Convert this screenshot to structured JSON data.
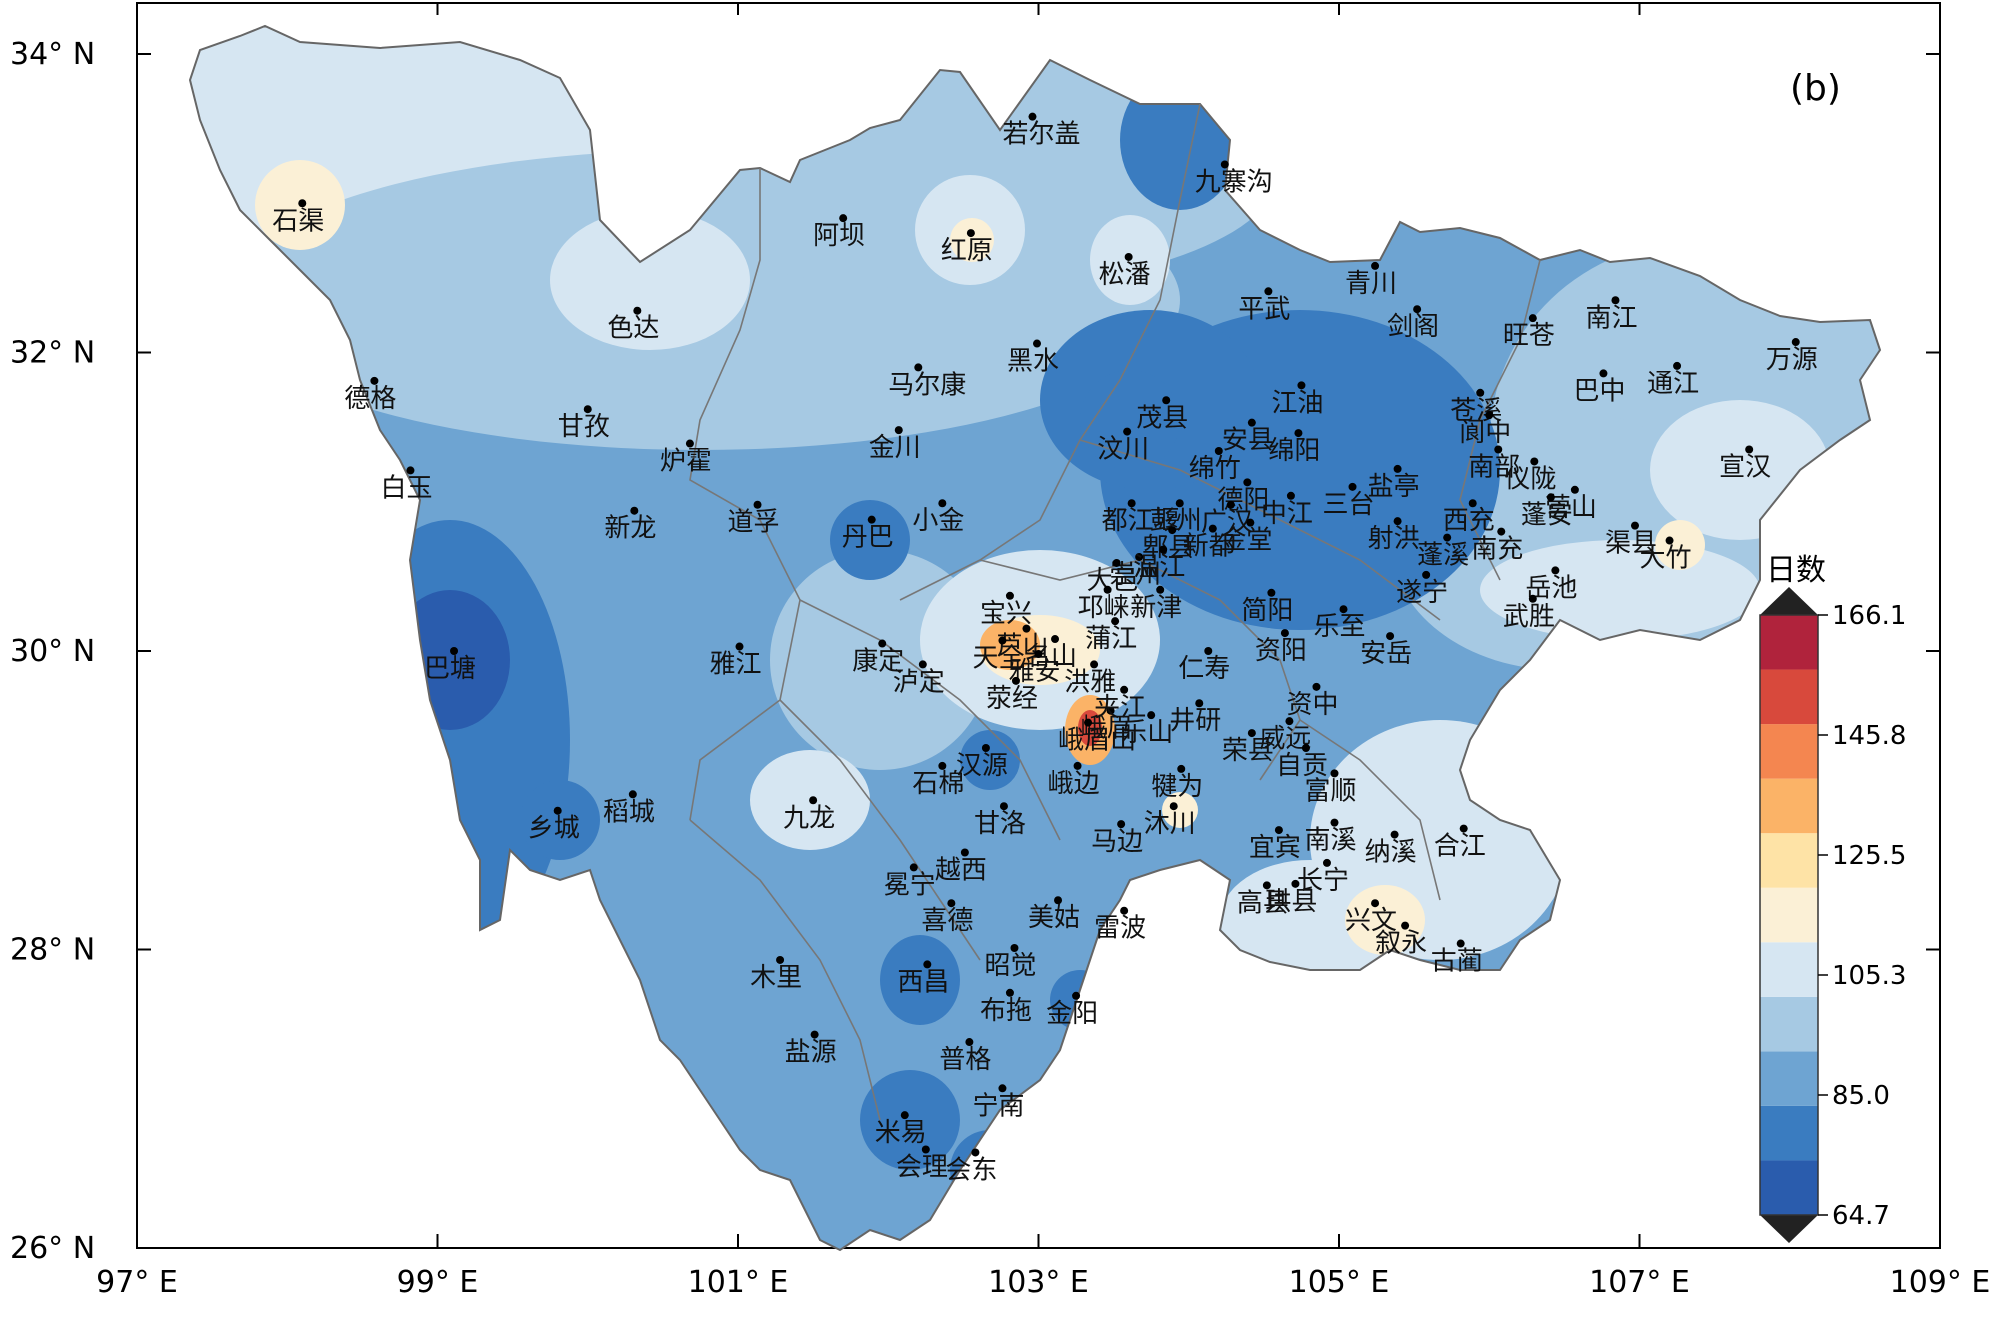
{
  "panel_label": "(b)",
  "colorbar": {
    "title": "日数",
    "ticks": [
      "166.1",
      "145.8",
      "125.5",
      "105.3",
      "85.0",
      "64.7"
    ],
    "colors": [
      "#2a5cad",
      "#3a7cc0",
      "#6ea4d2",
      "#a6c9e3",
      "#d6e6f2",
      "#fbf0d6",
      "#fee3a6",
      "#fbb367",
      "#f48650",
      "#d8493c",
      "#b0233c"
    ]
  },
  "axes": {
    "lon_ticks": [
      "97° E",
      "99° E",
      "101° E",
      "103° E",
      "105° E",
      "107° E",
      "109° E"
    ],
    "lat_ticks": [
      "34° N",
      "32° N",
      "30° N",
      "28° N",
      "26° N"
    ],
    "lon_range": [
      97,
      109
    ],
    "lat_range": [
      26,
      34.3
    ]
  },
  "cities": [
    {
      "name": "石渠",
      "lon": 98.1,
      "lat": 33.0
    },
    {
      "name": "若尔盖",
      "lon": 102.96,
      "lat": 33.58
    },
    {
      "name": "九寨沟",
      "lon": 104.24,
      "lat": 33.26
    },
    {
      "name": "阿坝",
      "lon": 101.7,
      "lat": 32.9
    },
    {
      "name": "红原",
      "lon": 102.55,
      "lat": 32.8
    },
    {
      "name": "松潘",
      "lon": 103.6,
      "lat": 32.64
    },
    {
      "name": "色达",
      "lon": 100.33,
      "lat": 32.28
    },
    {
      "name": "青川",
      "lon": 105.24,
      "lat": 32.58
    },
    {
      "name": "平武",
      "lon": 104.53,
      "lat": 32.41
    },
    {
      "name": "旺苍",
      "lon": 106.29,
      "lat": 32.23
    },
    {
      "name": "南江",
      "lon": 106.84,
      "lat": 32.35
    },
    {
      "name": "剑阁",
      "lon": 105.52,
      "lat": 32.29
    },
    {
      "name": "德格",
      "lon": 98.58,
      "lat": 31.81
    },
    {
      "name": "马尔康",
      "lon": 102.2,
      "lat": 31.9
    },
    {
      "name": "黑水",
      "lon": 102.99,
      "lat": 32.06
    },
    {
      "name": "茂县",
      "lon": 103.85,
      "lat": 31.68
    },
    {
      "name": "安县",
      "lon": 104.42,
      "lat": 31.53
    },
    {
      "name": "江油",
      "lon": 104.75,
      "lat": 31.78
    },
    {
      "name": "苍溪",
      "lon": 105.94,
      "lat": 31.73
    },
    {
      "name": "阆中",
      "lon": 106.0,
      "lat": 31.58
    },
    {
      "name": "巴中",
      "lon": 106.76,
      "lat": 31.86
    },
    {
      "name": "通江",
      "lon": 107.25,
      "lat": 31.91
    },
    {
      "name": "万源",
      "lon": 108.04,
      "lat": 32.07
    },
    {
      "name": "甘孜",
      "lon": 100.0,
      "lat": 31.62
    },
    {
      "name": "汶川",
      "lon": 103.59,
      "lat": 31.47
    },
    {
      "name": "绵竹",
      "lon": 104.2,
      "lat": 31.34
    },
    {
      "name": "绵阳",
      "lon": 104.73,
      "lat": 31.46
    },
    {
      "name": "德阳",
      "lon": 104.39,
      "lat": 31.13
    },
    {
      "name": "盐亭",
      "lon": 105.39,
      "lat": 31.22
    },
    {
      "name": "仪陇",
      "lon": 106.3,
      "lat": 31.27
    },
    {
      "name": "白玉",
      "lon": 98.82,
      "lat": 31.21
    },
    {
      "name": "炉霍",
      "lon": 100.68,
      "lat": 31.39
    },
    {
      "name": "金川",
      "lon": 102.07,
      "lat": 31.48
    },
    {
      "name": "彭州",
      "lon": 103.94,
      "lat": 30.99
    },
    {
      "name": "南部",
      "lon": 106.06,
      "lat": 31.35
    },
    {
      "name": "宣汉",
      "lon": 107.73,
      "lat": 31.35
    },
    {
      "name": "都江堰",
      "lon": 103.62,
      "lat": 30.99
    },
    {
      "name": "广汉",
      "lon": 104.28,
      "lat": 30.98
    },
    {
      "name": "中江",
      "lon": 104.68,
      "lat": 31.04
    },
    {
      "name": "三台",
      "lon": 105.09,
      "lat": 31.1
    },
    {
      "name": "营山",
      "lon": 106.57,
      "lat": 31.08
    },
    {
      "name": "小金",
      "lon": 102.36,
      "lat": 30.99
    },
    {
      "name": "郫县",
      "lon": 103.89,
      "lat": 30.81
    },
    {
      "name": "西充",
      "lon": 105.89,
      "lat": 30.99
    },
    {
      "name": "南充",
      "lon": 106.08,
      "lat": 30.8
    },
    {
      "name": "渠县",
      "lon": 106.97,
      "lat": 30.84
    },
    {
      "name": "新龙",
      "lon": 100.31,
      "lat": 30.94
    },
    {
      "name": "道孚",
      "lon": 101.13,
      "lat": 30.98
    },
    {
      "name": "丹巴",
      "lon": 101.89,
      "lat": 30.88
    },
    {
      "name": "宝兴",
      "lon": 102.81,
      "lat": 30.37
    },
    {
      "name": "崇州",
      "lon": 103.67,
      "lat": 30.63
    },
    {
      "name": "新都",
      "lon": 104.16,
      "lat": 30.82
    },
    {
      "name": "金堂",
      "lon": 104.41,
      "lat": 30.86
    },
    {
      "name": "射洪",
      "lon": 105.39,
      "lat": 30.87
    },
    {
      "name": "蓬溪",
      "lon": 105.72,
      "lat": 30.76
    },
    {
      "name": "蓬安",
      "lon": 106.41,
      "lat": 31.03
    },
    {
      "name": "大竹",
      "lon": 107.2,
      "lat": 30.74
    },
    {
      "name": "大邑",
      "lon": 103.52,
      "lat": 30.59
    },
    {
      "name": "温江",
      "lon": 103.83,
      "lat": 30.68
    },
    {
      "name": "芦山",
      "lon": 102.92,
      "lat": 30.15
    },
    {
      "name": "新津",
      "lon": 103.81,
      "lat": 30.41
    },
    {
      "name": "乐至",
      "lon": 105.03,
      "lat": 30.28
    },
    {
      "name": "遂宁",
      "lon": 105.58,
      "lat": 30.51
    },
    {
      "name": "岳池",
      "lon": 106.44,
      "lat": 30.54
    },
    {
      "name": "武胜",
      "lon": 106.29,
      "lat": 30.35
    },
    {
      "name": "康定",
      "lon": 101.96,
      "lat": 30.05
    },
    {
      "name": "名山",
      "lon": 103.11,
      "lat": 30.08
    },
    {
      "name": "邛崃",
      "lon": 103.46,
      "lat": 30.41
    },
    {
      "name": "简阳",
      "lon": 104.55,
      "lat": 30.39
    },
    {
      "name": "资阳",
      "lon": 104.64,
      "lat": 30.12
    },
    {
      "name": "雅江",
      "lon": 101.01,
      "lat": 30.03
    },
    {
      "name": "巴塘",
      "lon": 99.11,
      "lat": 30.0
    },
    {
      "name": "天全",
      "lon": 102.76,
      "lat": 30.07
    },
    {
      "name": "雅安",
      "lon": 103.0,
      "lat": 29.98
    },
    {
      "name": "洪雅",
      "lon": 103.37,
      "lat": 29.91
    },
    {
      "name": "仁寿",
      "lon": 104.13,
      "lat": 30.0
    },
    {
      "name": "资中",
      "lon": 104.85,
      "lat": 29.76
    },
    {
      "name": "安岳",
      "lon": 105.34,
      "lat": 30.1
    },
    {
      "name": "泸定",
      "lon": 102.23,
      "lat": 29.91
    },
    {
      "name": "蒲江",
      "lon": 103.51,
      "lat": 30.2
    },
    {
      "name": "荥经",
      "lon": 102.85,
      "lat": 29.8
    },
    {
      "name": "峨眉",
      "lon": 103.48,
      "lat": 29.6
    },
    {
      "name": "夹江",
      "lon": 103.57,
      "lat": 29.74
    },
    {
      "name": "井研",
      "lon": 104.07,
      "lat": 29.65
    },
    {
      "name": "威远",
      "lon": 104.67,
      "lat": 29.53
    },
    {
      "name": "荣县",
      "lon": 104.42,
      "lat": 29.45
    },
    {
      "name": "汉源",
      "lon": 102.65,
      "lat": 29.35
    },
    {
      "name": "峨眉山",
      "lon": 103.33,
      "lat": 29.52
    },
    {
      "name": "犍为",
      "lon": 103.95,
      "lat": 29.21
    },
    {
      "name": "自贡",
      "lon": 104.78,
      "lat": 29.35
    },
    {
      "name": "富顺",
      "lon": 104.97,
      "lat": 29.18
    },
    {
      "name": "石棉",
      "lon": 102.36,
      "lat": 29.23
    },
    {
      "name": "稻城",
      "lon": 100.3,
      "lat": 29.04
    },
    {
      "name": "甘洛",
      "lon": 102.77,
      "lat": 28.96
    },
    {
      "name": "峨边",
      "lon": 103.26,
      "lat": 29.23
    },
    {
      "name": "乐山",
      "lon": 103.75,
      "lat": 29.57
    },
    {
      "name": "宜宾",
      "lon": 104.6,
      "lat": 28.8
    },
    {
      "name": "南溪",
      "lon": 104.97,
      "lat": 28.85
    },
    {
      "name": "合江",
      "lon": 105.83,
      "lat": 28.81
    },
    {
      "name": "九龙",
      "lon": 101.5,
      "lat": 29.0
    },
    {
      "name": "乡城",
      "lon": 99.8,
      "lat": 28.93
    },
    {
      "name": "越西",
      "lon": 102.51,
      "lat": 28.65
    },
    {
      "name": "马边",
      "lon": 103.55,
      "lat": 28.84
    },
    {
      "name": "沐川",
      "lon": 103.9,
      "lat": 28.96
    },
    {
      "name": "纳溪",
      "lon": 105.37,
      "lat": 28.77
    },
    {
      "name": "冕宁",
      "lon": 102.17,
      "lat": 28.55
    },
    {
      "name": "美姑",
      "lon": 103.13,
      "lat": 28.33
    },
    {
      "name": "高县",
      "lon": 104.52,
      "lat": 28.43
    },
    {
      "name": "长宁",
      "lon": 104.92,
      "lat": 28.58
    },
    {
      "name": "兴文",
      "lon": 105.24,
      "lat": 28.31
    },
    {
      "name": "雷波",
      "lon": 103.57,
      "lat": 28.26
    },
    {
      "name": "喜德",
      "lon": 102.42,
      "lat": 28.31
    },
    {
      "name": "叙永",
      "lon": 105.44,
      "lat": 28.16
    },
    {
      "name": "珙县",
      "lon": 104.71,
      "lat": 28.44
    },
    {
      "name": "古蔺",
      "lon": 105.81,
      "lat": 28.04
    },
    {
      "name": "昭觉",
      "lon": 102.84,
      "lat": 28.01
    },
    {
      "name": "木里",
      "lon": 101.28,
      "lat": 27.93
    },
    {
      "name": "西昌",
      "lon": 102.26,
      "lat": 27.9
    },
    {
      "name": "布拖",
      "lon": 102.81,
      "lat": 27.71
    },
    {
      "name": "金阳",
      "lon": 103.25,
      "lat": 27.69
    },
    {
      "name": "盐源",
      "lon": 101.51,
      "lat": 27.43
    },
    {
      "name": "普格",
      "lon": 102.54,
      "lat": 27.38
    },
    {
      "name": "宁南",
      "lon": 102.76,
      "lat": 27.07
    },
    {
      "name": "米易",
      "lon": 102.11,
      "lat": 26.89
    },
    {
      "name": "会理",
      "lon": 102.25,
      "lat": 26.66
    },
    {
      "name": "会东",
      "lon": 102.58,
      "lat": 26.64
    }
  ]
}
